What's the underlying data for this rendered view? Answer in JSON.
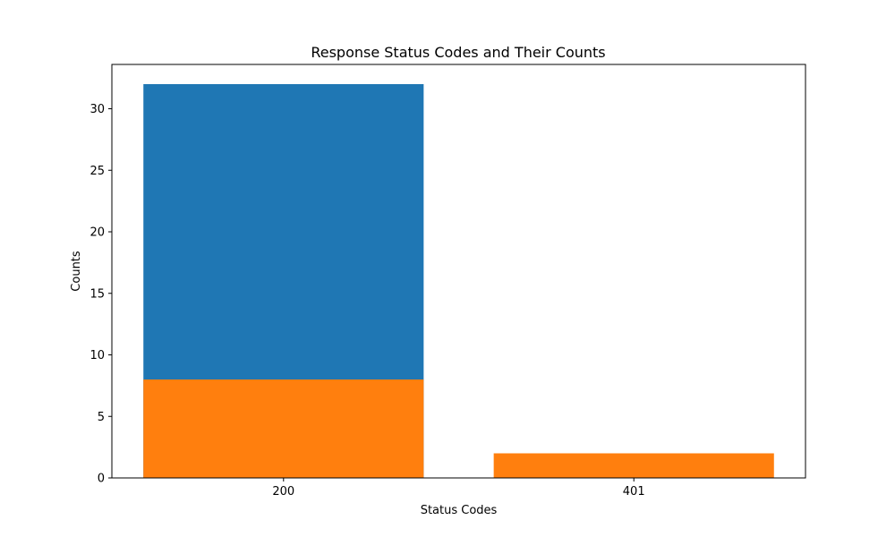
{
  "chart_data": {
    "type": "bar",
    "title": "Response Status Codes and Their Counts",
    "xlabel": "Status Codes",
    "ylabel": "Counts",
    "categories": [
      "200",
      "401"
    ],
    "series": [
      {
        "values": [
          32,
          0
        ],
        "color": "#1f77b4"
      },
      {
        "values": [
          8,
          2
        ],
        "color": "#ff7f0e"
      }
    ],
    "overlay": true,
    "ylim": [
      0,
      33.6
    ],
    "yticks": [
      0,
      5,
      10,
      15,
      20,
      25,
      30
    ],
    "grid": false
  }
}
